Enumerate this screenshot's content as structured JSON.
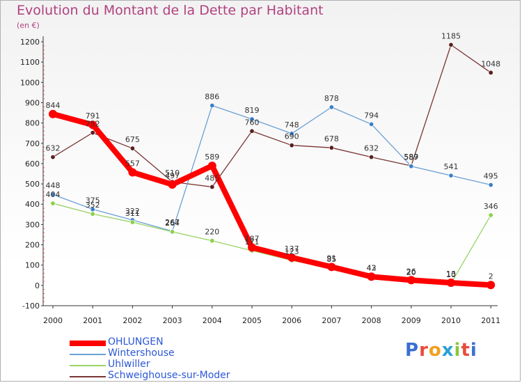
{
  "chart_data": {
    "type": "line",
    "title": "Evolution du Montant de la Dette par Habitant",
    "subtitle": "(en €)",
    "x": [
      "2000",
      "2001",
      "2002",
      "2003",
      "2004",
      "2005",
      "2006",
      "2007",
      "2008",
      "2009",
      "2010",
      "2011"
    ],
    "yticks": [
      "-100",
      "0",
      "100",
      "200",
      "300",
      "400",
      "500",
      "600",
      "700",
      "800",
      "900",
      "1000",
      "1100",
      "1200"
    ],
    "ylim": [
      -100,
      1200
    ],
    "grid": false,
    "legend_position": "bottom-left",
    "series": [
      {
        "name": "OHLUNGEN",
        "color": "#ff0000",
        "values": [
          844,
          791,
          557,
          497,
          589,
          187,
          137,
          91,
          43,
          26,
          13,
          2
        ],
        "labels": [
          "844",
          "791",
          "557",
          "497",
          "589",
          "187",
          "137",
          "91",
          "43",
          "26",
          "13",
          "2"
        ]
      },
      {
        "name": "Wintershouse",
        "color": "#6a9fd4",
        "values": [
          448,
          375,
          322,
          267,
          886,
          819,
          748,
          878,
          794,
          587,
          541,
          495
        ],
        "labels": [
          "448",
          "375",
          "322",
          "267",
          "886",
          "819",
          "748",
          "878",
          "794",
          "587",
          "541",
          "495"
        ]
      },
      {
        "name": "Uhlwiller",
        "color": "#99d366",
        "values": [
          404,
          352,
          311,
          264,
          220,
          171,
          123,
          85,
          42,
          20,
          10,
          346
        ],
        "labels": [
          "404",
          "352",
          "311",
          "264",
          "220",
          "171",
          "123",
          "85",
          "42",
          "20",
          "10",
          "346"
        ]
      },
      {
        "name": "Schweighouse-sur-Moder",
        "color": "#7a3434",
        "values": [
          632,
          752,
          675,
          510,
          485,
          760,
          690,
          678,
          632,
          589,
          1185,
          1048
        ],
        "labels": [
          "632",
          "752",
          "675",
          "510",
          "485",
          "760",
          "690",
          "678",
          "632",
          "589",
          "1185",
          "1048"
        ]
      }
    ]
  },
  "logo": {
    "letters": [
      "P",
      "r",
      "o",
      "x",
      "i",
      "t",
      "i"
    ],
    "colors": [
      "#3b6fd1",
      "#e84c3d",
      "#f0a020",
      "#2aa0d8",
      "#8cc63f",
      "#e84c3d",
      "#3b6fd1"
    ]
  }
}
